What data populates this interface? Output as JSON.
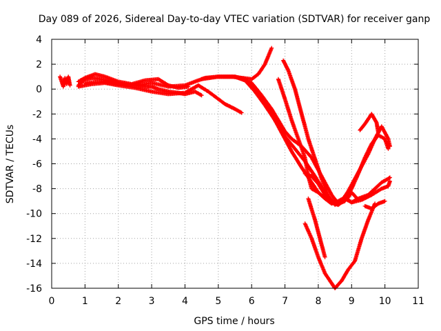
{
  "chart_data": {
    "type": "scatter",
    "title": "Day 089 of 2026, Sidereal Day-to-day VTEC variation (SDTVAR) for receiver ganp",
    "xlabel": "GPS time / hours",
    "ylabel": "SDTVAR / TECUs",
    "xlim": [
      0,
      11
    ],
    "ylim": [
      -16,
      4
    ],
    "xticks": [
      "0",
      "1",
      "2",
      "3",
      "4",
      "5",
      "6",
      "7",
      "8",
      "9",
      "10",
      "11"
    ],
    "yticks": [
      "4",
      "2",
      "0",
      "-2",
      "-4",
      "-6",
      "-8",
      "-10",
      "-12",
      "-14",
      "-16"
    ],
    "grid": true,
    "marker": "plus",
    "color": "#ff0000",
    "series": [
      {
        "x": [
          0.25,
          0.3,
          0.35,
          0.4,
          0.45,
          0.5,
          0.55
        ],
        "y": [
          1.0,
          0.6,
          0.2,
          0.9,
          0.4,
          1.0,
          0.3
        ]
      },
      {
        "x": [
          0.8,
          1.0,
          1.2,
          1.5,
          1.8,
          2.0,
          2.2,
          2.5,
          2.8,
          3.0,
          3.2,
          3.5,
          3.8,
          4.0,
          4.3,
          4.5
        ],
        "y": [
          0.3,
          0.8,
          0.9,
          0.8,
          0.6,
          0.5,
          0.4,
          0.3,
          0.2,
          0.2,
          0.0,
          -0.2,
          -0.3,
          -0.4,
          -0.2,
          -0.5
        ]
      },
      {
        "x": [
          0.8,
          1.0,
          1.3,
          1.6,
          2.0,
          2.4,
          2.8,
          3.2,
          3.5,
          3.8,
          4.1
        ],
        "y": [
          0.6,
          0.9,
          1.2,
          1.0,
          0.6,
          0.4,
          0.7,
          0.8,
          0.3,
          0.1,
          0.2
        ]
      },
      {
        "x": [
          0.8,
          1.2,
          1.6,
          2.0,
          2.5,
          3.0,
          3.5,
          4.0,
          4.4,
          4.7,
          5.0,
          5.2,
          5.5,
          5.7
        ],
        "y": [
          0.2,
          0.4,
          0.5,
          0.3,
          0.1,
          -0.2,
          -0.4,
          -0.3,
          0.3,
          -0.2,
          -0.8,
          -1.2,
          -1.6,
          -1.9
        ]
      },
      {
        "x": [
          1.0,
          1.5,
          2.0,
          2.5,
          3.0,
          3.5,
          4.0,
          4.3,
          4.6,
          5.0,
          5.4,
          5.7,
          6.0,
          6.2,
          6.4,
          6.6
        ],
        "y": [
          0.5,
          0.6,
          0.4,
          0.3,
          0.5,
          0.2,
          0.3,
          0.6,
          0.9,
          1.0,
          1.0,
          0.9,
          0.8,
          1.2,
          2.0,
          3.3
        ]
      },
      {
        "x": [
          4.5,
          5.0,
          5.5,
          5.8,
          6.0,
          6.3,
          6.6,
          6.9,
          7.2,
          7.5,
          7.8,
          8.0,
          8.2,
          8.4,
          8.6,
          8.8,
          9.0,
          9.2,
          9.5,
          9.7,
          9.9,
          10.1,
          10.15
        ],
        "y": [
          0.8,
          1.0,
          1.0,
          0.8,
          0.2,
          -0.8,
          -2.0,
          -3.5,
          -5.0,
          -6.3,
          -7.5,
          -8.3,
          -8.8,
          -9.2,
          -9.0,
          -8.7,
          -9.1,
          -8.8,
          -8.5,
          -8.0,
          -7.5,
          -7.2,
          -7.1
        ]
      },
      {
        "x": [
          5.0,
          5.5,
          5.8,
          6.1,
          6.4,
          6.7,
          7.0,
          7.3,
          7.6,
          7.9,
          8.2,
          8.5,
          8.8,
          9.0,
          9.3,
          9.6,
          9.9,
          10.1,
          10.15
        ],
        "y": [
          1.0,
          1.0,
          0.7,
          -0.2,
          -1.3,
          -2.5,
          -3.8,
          -4.8,
          -5.8,
          -7.0,
          -8.3,
          -9.2,
          -8.8,
          -9.1,
          -8.9,
          -8.5,
          -8.0,
          -7.8,
          -7.4
        ]
      },
      {
        "x": [
          5.5,
          6.0,
          6.3,
          6.6,
          6.8,
          7.0,
          7.2,
          7.5,
          7.8,
          8.0,
          8.2,
          8.4,
          8.6,
          8.8,
          9.0,
          9.2,
          9.4,
          9.6,
          9.8,
          10.0,
          10.1
        ],
        "y": [
          1.0,
          0.5,
          -0.5,
          -1.6,
          -2.5,
          -3.4,
          -4.0,
          -4.6,
          -5.5,
          -6.5,
          -7.5,
          -8.5,
          -9.2,
          -9.0,
          -8.0,
          -6.8,
          -5.5,
          -4.4,
          -3.7,
          -4.0,
          -4.8
        ]
      },
      {
        "x": [
          6.8,
          7.0,
          7.2,
          7.4,
          7.6,
          7.7,
          7.8,
          8.0,
          8.2,
          8.4,
          8.5,
          8.6,
          8.7,
          8.9,
          9.0,
          9.2
        ],
        "y": [
          0.8,
          -0.8,
          -2.5,
          -4.0,
          -5.5,
          -7.0,
          -8.0,
          -8.3,
          -8.8,
          -9.0,
          -9.2,
          -9.3,
          -9.1,
          -8.7,
          -8.3,
          -8.9
        ]
      },
      {
        "x": [
          6.95,
          7.1,
          7.3,
          7.5,
          7.7,
          7.9,
          8.1,
          8.3,
          8.5,
          8.7,
          8.9,
          9.1,
          9.3,
          9.5,
          9.7,
          9.9,
          10.1,
          10.15
        ],
        "y": [
          2.3,
          1.5,
          0.0,
          -2.0,
          -4.0,
          -5.6,
          -7.2,
          -8.6,
          -9.3,
          -9.0,
          -8.2,
          -7.2,
          -6.2,
          -5.2,
          -4.0,
          -3.0,
          -4.0,
          -4.6
        ]
      },
      {
        "x": [
          7.6,
          7.8,
          8.0,
          8.2,
          8.3
        ],
        "y": [
          -6.8,
          -7.0,
          -7.6,
          -8.5,
          -9.0
        ]
      },
      {
        "x": [
          7.6,
          7.8,
          8.0,
          8.2,
          8.4,
          8.5,
          8.7,
          8.9,
          9.1,
          9.3,
          9.5,
          9.7
        ],
        "y": [
          -10.8,
          -12.0,
          -13.5,
          -14.8,
          -15.6,
          -16.0,
          -15.4,
          -14.5,
          -13.8,
          -12.0,
          -10.5,
          -9.2
        ]
      },
      {
        "x": [
          7.7,
          7.9,
          8.1,
          8.2
        ],
        "y": [
          -8.8,
          -10.5,
          -12.5,
          -13.5
        ]
      },
      {
        "x": [
          9.4,
          9.6,
          9.8,
          10.0
        ],
        "y": [
          -9.4,
          -9.6,
          -9.2,
          -9.0
        ]
      },
      {
        "x": [
          9.25,
          9.4,
          9.6,
          9.75,
          9.8
        ],
        "y": [
          -3.3,
          -2.8,
          -2.0,
          -2.7,
          -3.5
        ]
      }
    ]
  }
}
